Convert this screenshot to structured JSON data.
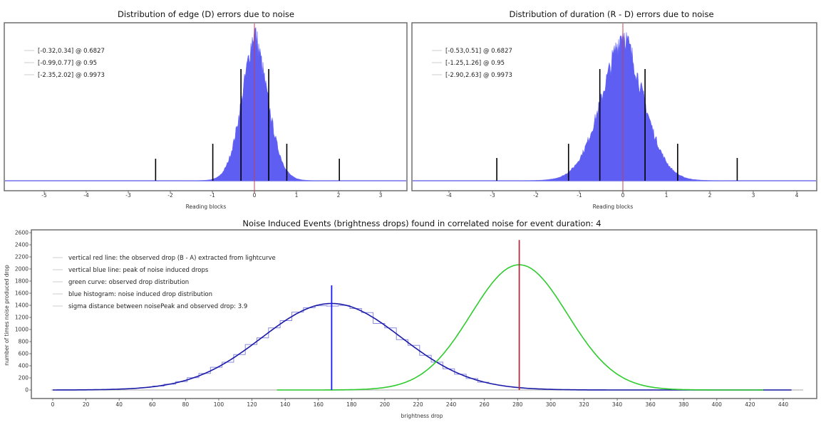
{
  "chart_data": [
    {
      "type": "bar",
      "id": "edge",
      "title": "Distribution of edge (D) errors due to noise",
      "xlabel": "Reading blocks",
      "ylabel": "",
      "xlim": [
        -5.95,
        3.6
      ],
      "xticks": [
        -5,
        -4,
        -3,
        -2,
        -1,
        0,
        1,
        2,
        3
      ],
      "distribution": {
        "center": 0.0,
        "sigma_left": 0.32,
        "sigma_right": 0.34,
        "shape": "laplace-like histogram",
        "peak_relative": 1.0
      },
      "observed_line": 0,
      "interval_markers": [
        -0.32,
        0.34,
        -0.99,
        0.77,
        -2.35,
        2.02
      ],
      "legend": [
        {
          "label": "[-0.32,0.34] @ 0.6827",
          "low": -0.32,
          "high": 0.34,
          "confidence": 0.6827
        },
        {
          "label": "[-0.99,0.77] @ 0.95",
          "low": -0.99,
          "high": 0.77,
          "confidence": 0.95
        },
        {
          "label": "[-2.35,2.02] @ 0.9973",
          "low": -2.35,
          "high": 2.02,
          "confidence": 0.9973
        }
      ],
      "legend_position": "top-left"
    },
    {
      "type": "bar",
      "id": "duration",
      "title": "Distribution of duration (R - D) errors due to noise",
      "xlabel": "Reading blocks",
      "ylabel": "",
      "xlim": [
        -4.8,
        4.45
      ],
      "xticks": [
        -4,
        -3,
        -2,
        -1,
        0,
        1,
        2,
        3,
        4
      ],
      "distribution": {
        "center": 0.0,
        "sigma_left": 0.53,
        "sigma_right": 0.51,
        "shape": "histogram",
        "peak_relative": 1.0
      },
      "observed_line": 0,
      "interval_markers": [
        -0.53,
        0.51,
        -1.25,
        1.26,
        -2.9,
        2.63
      ],
      "legend": [
        {
          "label": "[-0.53,0.51] @ 0.6827",
          "low": -0.53,
          "high": 0.51,
          "confidence": 0.6827
        },
        {
          "label": "[-1.25,1.26] @ 0.95",
          "low": -1.25,
          "high": 1.26,
          "confidence": 0.95
        },
        {
          "label": "[-2.90,2.63] @ 0.9973",
          "low": -2.9,
          "high": 2.63,
          "confidence": 0.9973
        }
      ],
      "legend_position": "top-left"
    },
    {
      "type": "line",
      "id": "events",
      "title": "Noise Induced Events (brightness drops) found in correlated noise for event duration: 4",
      "xlabel": "brightness drop",
      "ylabel": "number of times noise produced drop",
      "xlim": [
        -12,
        458
      ],
      "ylim": [
        -150,
        2620
      ],
      "xticks": [
        0,
        20,
        40,
        60,
        80,
        100,
        120,
        140,
        160,
        180,
        200,
        220,
        240,
        260,
        280,
        300,
        320,
        340,
        360,
        380,
        400,
        420,
        440
      ],
      "yticks": [
        0,
        200,
        400,
        600,
        800,
        1000,
        1200,
        1400,
        1600,
        1800,
        2000,
        2200,
        2400,
        2600
      ],
      "series": [
        {
          "name": "blue histogram: noise induced drop distribution",
          "kind": "gaussian-fit",
          "mean": 168,
          "sigma": 42,
          "peak": 1430,
          "x_range": [
            0,
            445
          ],
          "color": "#1a1aa8"
        },
        {
          "name": "green curve: observed drop distribution",
          "kind": "gaussian",
          "mean": 281,
          "sigma": 29,
          "peak": 2070,
          "x_range": [
            135,
            428
          ],
          "color": "#2ecc2e"
        }
      ],
      "vertical_lines": [
        {
          "name": "vertical blue line: peak of noise induced drops",
          "x": 168,
          "top": 1730,
          "color": "#1a1aff"
        },
        {
          "name": "vertical red line: the observed drop (B - A) extracted from lightcurve",
          "x": 281,
          "top": 2480,
          "color": "#b03040"
        }
      ],
      "legend": [
        "vertical red line: the observed drop (B - A) extracted from lightcurve",
        "vertical blue line: peak of noise induced drops",
        "green curve: observed drop distribution",
        "blue histogram: noise induced drop distribution",
        "sigma distance between noisePeak and observed drop: 3.9"
      ],
      "legend_position": "top-left"
    }
  ]
}
